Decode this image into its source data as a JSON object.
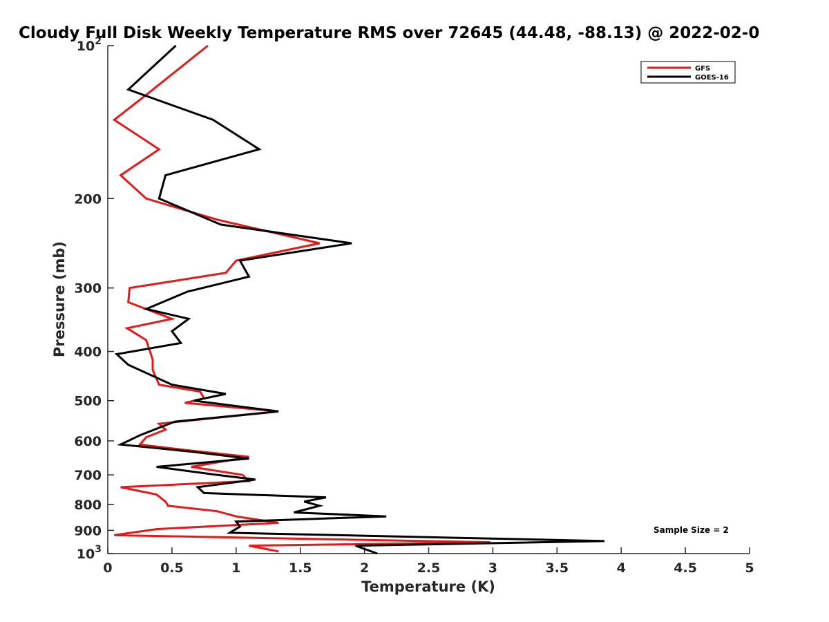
{
  "chart_data": {
    "type": "line",
    "title": "Cloudy Full Disk Weekly Temperature RMS over 72645 (44.48, -88.13) @ 2022-02-0",
    "xlabel": "Temperature (K)",
    "ylabel": "Pressure (mb)",
    "xlim": [
      0,
      5
    ],
    "ylim": [
      100,
      1000
    ],
    "yscale": "log",
    "y_reversed": true,
    "grid": false,
    "legend_position": "top-right",
    "x_ticks": [
      0,
      0.5,
      1,
      1.5,
      2,
      2.5,
      3,
      3.5,
      4,
      4.5,
      5
    ],
    "x_tick_labels": [
      "0",
      "0.5",
      "1",
      "1.5",
      "2",
      "2.5",
      "3",
      "3.5",
      "4",
      "4.5",
      "5"
    ],
    "y_ticks": [
      100,
      200,
      300,
      400,
      500,
      600,
      700,
      800,
      900,
      1000
    ],
    "y_tick_labels": [
      {
        "base": "10",
        "exp": "2"
      },
      {
        "text": "200"
      },
      {
        "text": "300"
      },
      {
        "text": "400"
      },
      {
        "text": "500"
      },
      {
        "text": "600"
      },
      {
        "text": "700"
      },
      {
        "text": "800"
      },
      {
        "text": "900"
      },
      {
        "base": "10",
        "exp": "3"
      }
    ],
    "annotation": "Sample Size = 2",
    "series": [
      {
        "name": "GFS",
        "color": "#e31a1c",
        "points": [
          [
            0.78,
            100
          ],
          [
            0.3,
            125
          ],
          [
            0.05,
            140
          ],
          [
            0.4,
            160
          ],
          [
            0.1,
            180
          ],
          [
            0.3,
            200
          ],
          [
            0.85,
            220
          ],
          [
            1.65,
            245
          ],
          [
            1.0,
            265
          ],
          [
            0.92,
            280
          ],
          [
            0.17,
            300
          ],
          [
            0.16,
            320
          ],
          [
            0.5,
            345
          ],
          [
            0.15,
            360
          ],
          [
            0.3,
            380
          ],
          [
            0.35,
            415
          ],
          [
            0.35,
            435
          ],
          [
            0.4,
            465
          ],
          [
            0.72,
            480
          ],
          [
            0.75,
            495
          ],
          [
            0.6,
            505
          ],
          [
            1.33,
            525
          ],
          [
            0.4,
            555
          ],
          [
            0.45,
            570
          ],
          [
            0.3,
            590
          ],
          [
            0.25,
            610
          ],
          [
            0.6,
            625
          ],
          [
            1.1,
            645
          ],
          [
            0.65,
            675
          ],
          [
            1.05,
            700
          ],
          [
            1.1,
            720
          ],
          [
            0.1,
            740
          ],
          [
            0.38,
            765
          ],
          [
            0.45,
            790
          ],
          [
            0.47,
            805
          ],
          [
            0.85,
            825
          ],
          [
            1.0,
            845
          ],
          [
            1.33,
            870
          ],
          [
            0.38,
            895
          ],
          [
            0.05,
            920
          ],
          [
            2.98,
            950
          ],
          [
            1.1,
            965
          ],
          [
            1.33,
            990
          ]
        ]
      },
      {
        "name": "GOES-16",
        "color": "#000000",
        "points": [
          [
            0.53,
            100
          ],
          [
            0.16,
            122
          ],
          [
            0.82,
            140
          ],
          [
            1.18,
            160
          ],
          [
            0.45,
            180
          ],
          [
            0.4,
            200
          ],
          [
            0.88,
            225
          ],
          [
            1.9,
            245
          ],
          [
            1.03,
            265
          ],
          [
            1.1,
            285
          ],
          [
            0.62,
            305
          ],
          [
            0.3,
            330
          ],
          [
            0.63,
            345
          ],
          [
            0.5,
            365
          ],
          [
            0.57,
            385
          ],
          [
            0.07,
            405
          ],
          [
            0.16,
            425
          ],
          [
            0.5,
            465
          ],
          [
            0.92,
            485
          ],
          [
            0.67,
            500
          ],
          [
            1.33,
            525
          ],
          [
            0.52,
            550
          ],
          [
            0.25,
            585
          ],
          [
            0.1,
            610
          ],
          [
            0.65,
            630
          ],
          [
            1.1,
            650
          ],
          [
            0.38,
            675
          ],
          [
            0.85,
            700
          ],
          [
            1.15,
            715
          ],
          [
            0.7,
            740
          ],
          [
            0.75,
            760
          ],
          [
            1.7,
            775
          ],
          [
            1.53,
            790
          ],
          [
            1.65,
            805
          ],
          [
            1.45,
            830
          ],
          [
            2.17,
            845
          ],
          [
            1.0,
            865
          ],
          [
            1.03,
            885
          ],
          [
            0.95,
            910
          ],
          [
            3.87,
            945
          ],
          [
            1.93,
            965
          ],
          [
            2.1,
            1000
          ]
        ]
      }
    ]
  }
}
